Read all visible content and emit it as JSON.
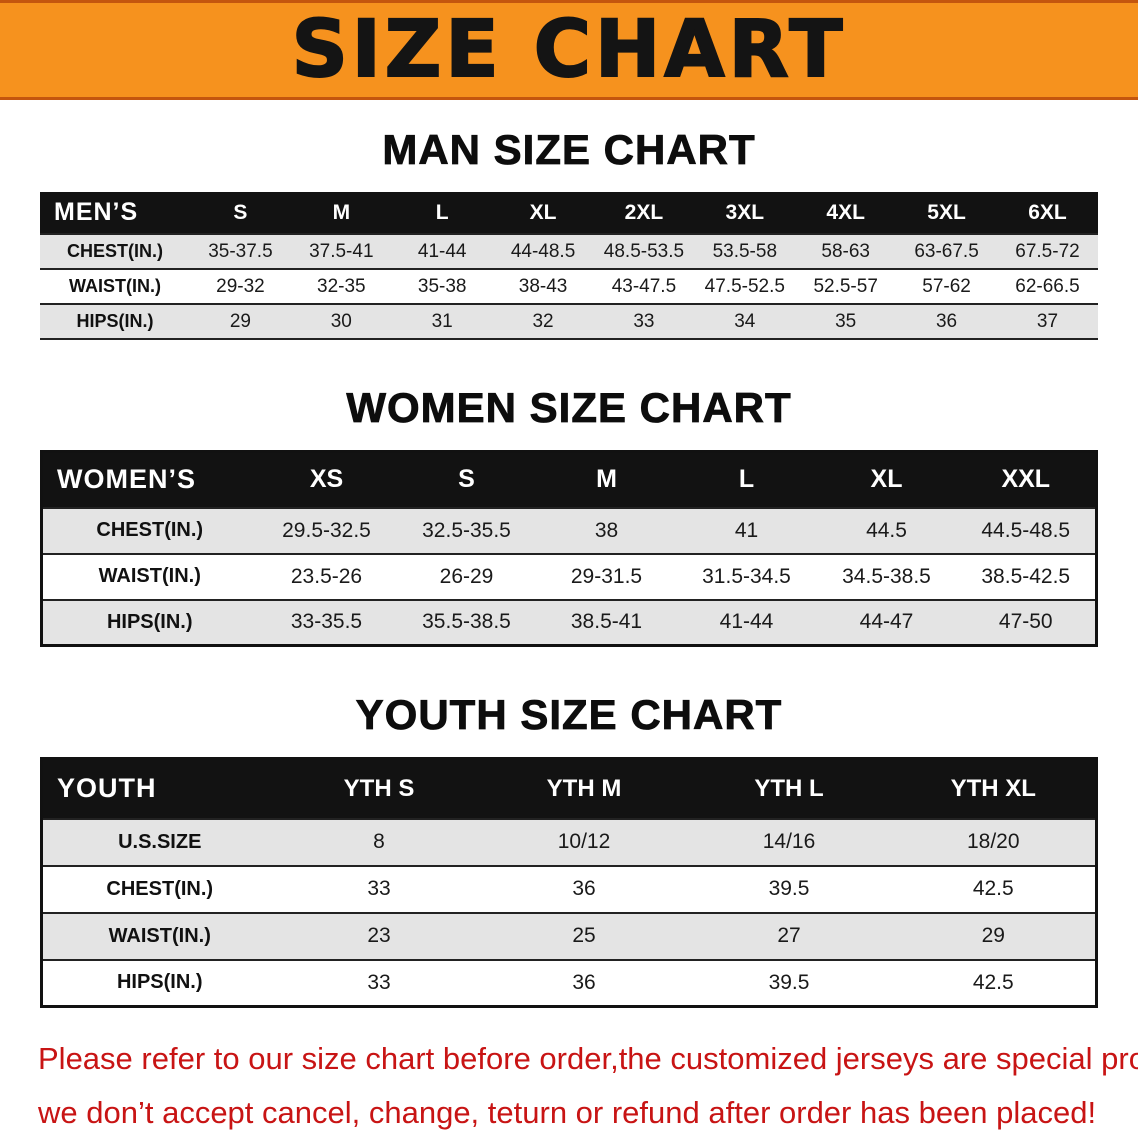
{
  "banner": {
    "title": "SIZE CHART",
    "bg_color": "#F6921E",
    "text_color": "#141414"
  },
  "sections": [
    {
      "heading": "MAN SIZE CHART",
      "table": {
        "corner_label": "MEN’S",
        "columns": [
          "S",
          "M",
          "L",
          "XL",
          "2XL",
          "3XL",
          "4XL",
          "5XL",
          "6XL"
        ],
        "rows": [
          {
            "label": "CHEST(IN.)",
            "values": [
              "35-37.5",
              "37.5-41",
              "41-44",
              "44-48.5",
              "48.5-53.5",
              "53.5-58",
              "58-63",
              "63-67.5",
              "67.5-72"
            ]
          },
          {
            "label": "WAIST(IN.)",
            "values": [
              "29-32",
              "32-35",
              "35-38",
              "38-43",
              "43-47.5",
              "47.5-52.5",
              "52.5-57",
              "57-62",
              "62-66.5"
            ]
          },
          {
            "label": "HIPS(IN.)",
            "values": [
              "29",
              "30",
              "31",
              "32",
              "33",
              "34",
              "35",
              "36",
              "37"
            ]
          }
        ]
      }
    },
    {
      "heading": "WOMEN SIZE CHART",
      "table": {
        "corner_label": "WOMEN’S",
        "columns": [
          "XS",
          "S",
          "M",
          "L",
          "XL",
          "XXL"
        ],
        "rows": [
          {
            "label": "CHEST(IN.)",
            "values": [
              "29.5-32.5",
              "32.5-35.5",
              "38",
              "41",
              "44.5",
              "44.5-48.5"
            ]
          },
          {
            "label": "WAIST(IN.)",
            "values": [
              "23.5-26",
              "26-29",
              "29-31.5",
              "31.5-34.5",
              "34.5-38.5",
              "38.5-42.5"
            ]
          },
          {
            "label": "HIPS(IN.)",
            "values": [
              "33-35.5",
              "35.5-38.5",
              "38.5-41",
              "41-44",
              "44-47",
              "47-50"
            ]
          }
        ]
      }
    },
    {
      "heading": "YOUTH SIZE CHART",
      "table": {
        "corner_label": "YOUTH",
        "columns": [
          "YTH S",
          "YTH M",
          "YTH L",
          "YTH XL"
        ],
        "rows": [
          {
            "label": "U.S.SIZE",
            "values": [
              "8",
              "10/12",
              "14/16",
              "18/20"
            ]
          },
          {
            "label": "CHEST(IN.)",
            "values": [
              "33",
              "36",
              "39.5",
              "42.5"
            ]
          },
          {
            "label": "WAIST(IN.)",
            "values": [
              "23",
              "25",
              "27",
              "29"
            ]
          },
          {
            "label": "HIPS(IN.)",
            "values": [
              "33",
              "36",
              "39.5",
              "42.5"
            ]
          }
        ]
      }
    }
  ],
  "footer": {
    "lines": [
      "Please refer to our size chart before order,the customized jerseys are special products,",
      "we don’t accept cancel, change, teturn or refund after order has been placed!"
    ],
    "text_color": "#C81414"
  },
  "colors": {
    "table_header_bg": "#121212",
    "stripe_row_bg": "#E4E4E4"
  }
}
